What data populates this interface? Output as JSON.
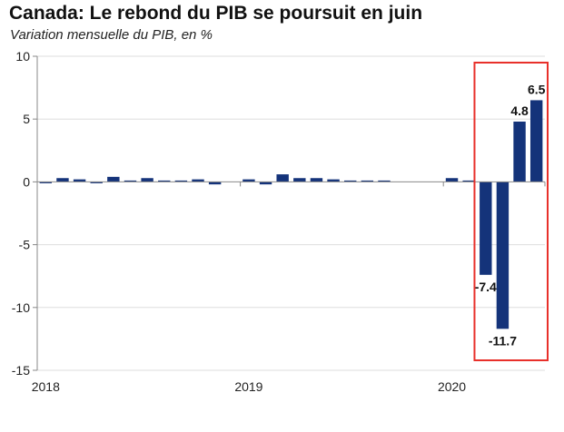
{
  "chart_data": {
    "type": "bar",
    "title": "Canada: Le rebond du PIB se poursuit en juin",
    "subtitle": "Variation mensuelle du PIB, en %",
    "xlabel": "",
    "ylabel": "",
    "ylim": [
      -15,
      10
    ],
    "yticks": [
      10,
      5,
      0,
      -5,
      -10,
      -15
    ],
    "xtick_labels": [
      "2018",
      "2019",
      "2020"
    ],
    "categories": [
      "2018-01",
      "2018-02",
      "2018-03",
      "2018-04",
      "2018-05",
      "2018-06",
      "2018-07",
      "2018-08",
      "2018-09",
      "2018-10",
      "2018-11",
      "2018-12",
      "2019-01",
      "2019-02",
      "2019-03",
      "2019-04",
      "2019-05",
      "2019-06",
      "2019-07",
      "2019-08",
      "2019-09",
      "2019-10",
      "2019-11",
      "2019-12",
      "2020-01",
      "2020-02",
      "2020-03",
      "2020-04",
      "2020-05",
      "2020-06"
    ],
    "values": [
      -0.1,
      0.3,
      0.2,
      -0.1,
      0.4,
      0.1,
      0.3,
      0.1,
      0.1,
      0.2,
      -0.2,
      0.0,
      0.2,
      -0.2,
      0.6,
      0.3,
      0.3,
      0.2,
      0.1,
      0.1,
      0.1,
      0.0,
      0.0,
      0.0,
      0.3,
      0.1,
      -7.4,
      -11.7,
      4.8,
      6.5
    ],
    "data_labels": [
      {
        "category": "2020-03",
        "text": "-7.4"
      },
      {
        "category": "2020-04",
        "text": "-11.7"
      },
      {
        "category": "2020-05",
        "text": "4.8"
      },
      {
        "category": "2020-06",
        "text": "6.5"
      }
    ],
    "highlight": {
      "from": "2020-03",
      "to": "2020-06",
      "color": "#e8302a"
    },
    "bar_color": "#14337a",
    "grid": true,
    "legend": "none"
  }
}
